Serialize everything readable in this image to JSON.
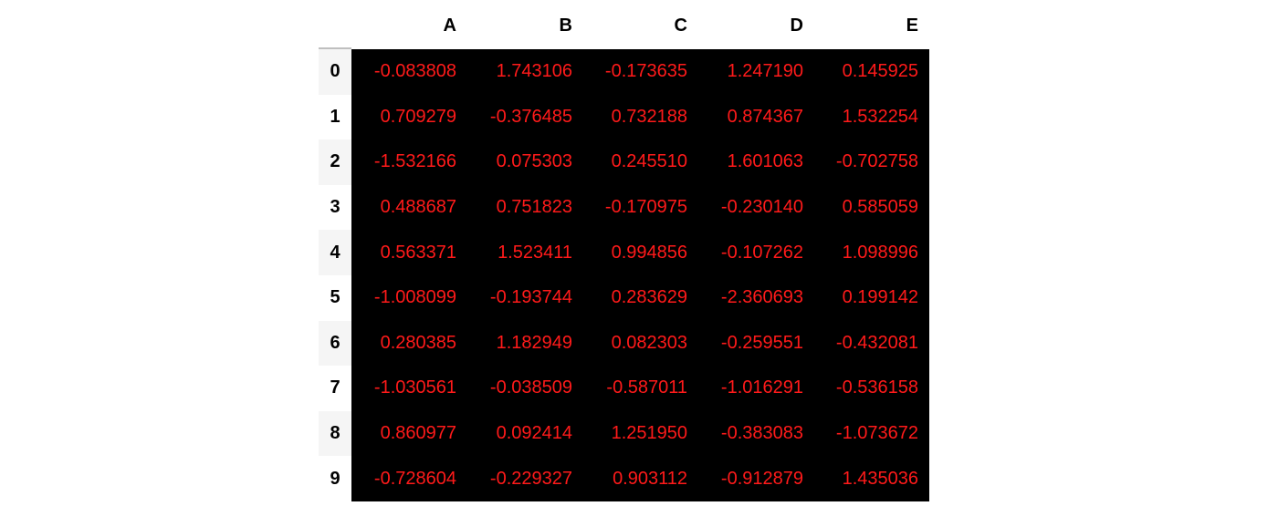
{
  "styles": {
    "cell_background": "#000000",
    "cell_text_color": "#ff1a1a",
    "header_text_color": "#000000",
    "index_stripe_color": "#f5f5f5"
  },
  "table": {
    "columns": [
      "A",
      "B",
      "C",
      "D",
      "E"
    ],
    "rows": [
      {
        "index": "0",
        "cells": [
          "-0.083808",
          "1.743106",
          "-0.173635",
          "1.247190",
          "0.145925"
        ]
      },
      {
        "index": "1",
        "cells": [
          "0.709279",
          "-0.376485",
          "0.732188",
          "0.874367",
          "1.532254"
        ]
      },
      {
        "index": "2",
        "cells": [
          "-1.532166",
          "0.075303",
          "0.245510",
          "1.601063",
          "-0.702758"
        ]
      },
      {
        "index": "3",
        "cells": [
          "0.488687",
          "0.751823",
          "-0.170975",
          "-0.230140",
          "0.585059"
        ]
      },
      {
        "index": "4",
        "cells": [
          "0.563371",
          "1.523411",
          "0.994856",
          "-0.107262",
          "1.098996"
        ]
      },
      {
        "index": "5",
        "cells": [
          "-1.008099",
          "-0.193744",
          "0.283629",
          "-2.360693",
          "0.199142"
        ]
      },
      {
        "index": "6",
        "cells": [
          "0.280385",
          "1.182949",
          "0.082303",
          "-0.259551",
          "-0.432081"
        ]
      },
      {
        "index": "7",
        "cells": [
          "-1.030561",
          "-0.038509",
          "-0.587011",
          "-1.016291",
          "-0.536158"
        ]
      },
      {
        "index": "8",
        "cells": [
          "0.860977",
          "0.092414",
          "1.251950",
          "-0.383083",
          "-1.073672"
        ]
      },
      {
        "index": "9",
        "cells": [
          "-0.728604",
          "-0.229327",
          "0.903112",
          "-0.912879",
          "1.435036"
        ]
      }
    ]
  }
}
